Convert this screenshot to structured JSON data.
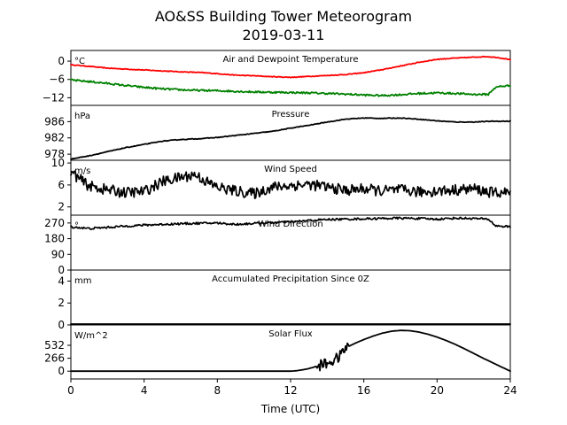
{
  "chart_data": {
    "type": "line",
    "title": "AO&SS Building Tower Meteorogram",
    "subtitle": "2019-03-11",
    "xlabel": "Time (UTC)",
    "xlim": [
      0,
      24
    ],
    "xticks": [
      0,
      4,
      8,
      12,
      16,
      20,
      24
    ],
    "xtick_labels": [
      "0",
      "4",
      "8",
      "12",
      "16",
      "20",
      "24"
    ],
    "grid": false,
    "panels": [
      {
        "key": "temp",
        "title": "Air and Dewpoint Temperature",
        "unit": "°C",
        "ylim": [
          -14.5,
          3.5
        ],
        "yticks": [
          0,
          -6,
          -12
        ],
        "ytick_labels": [
          "0",
          "−6",
          "−12"
        ],
        "series": [
          {
            "color": "#ff0000",
            "noise": 0.12,
            "points": [
              [
                0,
                -1.2
              ],
              [
                1,
                -1.7
              ],
              [
                2,
                -2.3
              ],
              [
                3,
                -2.6
              ],
              [
                4,
                -2.9
              ],
              [
                5,
                -3.2
              ],
              [
                6,
                -3.5
              ],
              [
                7,
                -3.7
              ],
              [
                8,
                -4.1
              ],
              [
                9,
                -4.6
              ],
              [
                10,
                -4.8
              ],
              [
                11,
                -5.1
              ],
              [
                12,
                -5.3
              ],
              [
                13,
                -5.0
              ],
              [
                14,
                -4.7
              ],
              [
                15,
                -4.4
              ],
              [
                16,
                -3.8
              ],
              [
                17,
                -2.8
              ],
              [
                18,
                -1.6
              ],
              [
                19,
                -0.4
              ],
              [
                20,
                0.6
              ],
              [
                21,
                1.0
              ],
              [
                22,
                1.3
              ],
              [
                22.7,
                1.5
              ],
              [
                23.3,
                1.2
              ],
              [
                24,
                0.5
              ]
            ]
          },
          {
            "color": "#008000",
            "noise": 0.3,
            "points": [
              [
                0,
                -6.2
              ],
              [
                1,
                -6.7
              ],
              [
                2,
                -7.3
              ],
              [
                3,
                -8.0
              ],
              [
                4,
                -8.6
              ],
              [
                5,
                -9.1
              ],
              [
                6,
                -9.4
              ],
              [
                7,
                -9.6
              ],
              [
                8,
                -9.7
              ],
              [
                9,
                -9.9
              ],
              [
                10,
                -10.1
              ],
              [
                11,
                -10.2
              ],
              [
                12,
                -10.3
              ],
              [
                13,
                -10.4
              ],
              [
                14,
                -10.6
              ],
              [
                15,
                -10.8
              ],
              [
                16,
                -11.1
              ],
              [
                17,
                -11.3
              ],
              [
                18,
                -11.0
              ],
              [
                19,
                -10.6
              ],
              [
                20,
                -10.4
              ],
              [
                21,
                -10.6
              ],
              [
                22,
                -10.9
              ],
              [
                22.8,
                -10.9
              ],
              [
                23.1,
                -9.0
              ],
              [
                23.4,
                -8.3
              ],
              [
                24,
                -8.0
              ]
            ]
          }
        ]
      },
      {
        "key": "pressure",
        "title": "Pressure",
        "unit": "hPa",
        "ylim": [
          976.5,
          990
        ],
        "yticks": [
          986,
          982,
          978
        ],
        "ytick_labels": [
          "986",
          "982",
          "978"
        ],
        "series": [
          {
            "color": "#000000",
            "noise": 0.08,
            "points": [
              [
                0,
                976.8
              ],
              [
                1,
                977.6
              ],
              [
                2,
                978.6
              ],
              [
                3,
                979.6
              ],
              [
                4,
                980.4
              ],
              [
                5,
                981.2
              ],
              [
                6,
                981.6
              ],
              [
                7,
                981.8
              ],
              [
                8,
                982.1
              ],
              [
                9,
                982.6
              ],
              [
                10,
                983.1
              ],
              [
                11,
                983.6
              ],
              [
                12,
                984.4
              ],
              [
                13,
                985.1
              ],
              [
                14,
                985.9
              ],
              [
                15,
                986.6
              ],
              [
                16,
                986.9
              ],
              [
                17,
                986.8
              ],
              [
                18,
                986.9
              ],
              [
                19,
                986.6
              ],
              [
                20,
                986.2
              ],
              [
                21,
                985.9
              ],
              [
                22,
                985.9
              ],
              [
                23,
                986.1
              ],
              [
                24,
                986.1
              ]
            ]
          }
        ]
      },
      {
        "key": "wind",
        "title": "Wind Speed",
        "unit": "m/s",
        "ylim": [
          0.5,
          10.5
        ],
        "yticks": [
          10,
          6,
          2
        ],
        "ytick_labels": [
          "10",
          "6",
          "2"
        ],
        "series": [
          {
            "color": "#000000",
            "noise": 1.0,
            "points": [
              [
                0,
                8.4
              ],
              [
                0.5,
                7.0
              ],
              [
                1,
                5.8
              ],
              [
                2,
                5.1
              ],
              [
                3,
                4.6
              ],
              [
                4,
                4.8
              ],
              [
                5,
                6.6
              ],
              [
                6,
                7.4
              ],
              [
                6.8,
                7.9
              ],
              [
                7.5,
                6.4
              ],
              [
                8,
                5.6
              ],
              [
                9,
                4.9
              ],
              [
                10,
                4.4
              ],
              [
                11,
                5.6
              ],
              [
                12,
                5.9
              ],
              [
                13,
                6.1
              ],
              [
                14,
                5.6
              ],
              [
                15,
                5.0
              ],
              [
                16,
                5.3
              ],
              [
                17,
                4.9
              ],
              [
                18,
                5.1
              ],
              [
                19,
                4.7
              ],
              [
                20,
                4.9
              ],
              [
                21,
                5.1
              ],
              [
                22,
                5.3
              ],
              [
                23,
                4.6
              ],
              [
                24,
                4.6
              ]
            ]
          }
        ]
      },
      {
        "key": "direction",
        "title": "Wind Direction",
        "unit": "°",
        "ylim": [
          0,
          315
        ],
        "yticks": [
          270,
          180,
          90,
          0
        ],
        "ytick_labels": [
          "270",
          "180",
          "90",
          "0"
        ],
        "series": [
          {
            "color": "#000000",
            "noise": 6,
            "points": [
              [
                0,
                248
              ],
              [
                1,
                238
              ],
              [
                2,
                245
              ],
              [
                3,
                252
              ],
              [
                4,
                258
              ],
              [
                5,
                262
              ],
              [
                6,
                266
              ],
              [
                7,
                268
              ],
              [
                8,
                270
              ],
              [
                9,
                262
              ],
              [
                10,
                268
              ],
              [
                11,
                272
              ],
              [
                12,
                276
              ],
              [
                13,
                284
              ],
              [
                14,
                290
              ],
              [
                15,
                292
              ],
              [
                16,
                294
              ],
              [
                17,
                296
              ],
              [
                18,
                298
              ],
              [
                19,
                296
              ],
              [
                20,
                292
              ],
              [
                21,
                298
              ],
              [
                22,
                296
              ],
              [
                22.8,
                292
              ],
              [
                23.2,
                254
              ],
              [
                24,
                248
              ]
            ]
          }
        ]
      },
      {
        "key": "precip",
        "title": "Accumulated Precipitation Since 0Z",
        "unit": "mm",
        "ylim": [
          0,
          5
        ],
        "yticks": [
          4,
          2,
          0
        ],
        "ytick_labels": [
          "4",
          "2",
          "0"
        ],
        "series": [
          {
            "color": "#000000",
            "noise": 0,
            "points": [
              [
                0,
                0
              ],
              [
                24,
                0
              ]
            ]
          }
        ]
      },
      {
        "key": "solar",
        "title": "Solar Flux",
        "unit": "W/m^2",
        "ylim": [
          -160,
          950
        ],
        "yticks": [
          532,
          266,
          0
        ],
        "ytick_labels": [
          "532",
          "266",
          "0"
        ],
        "series": [
          {
            "color": "#000000",
            "noise": 0,
            "points": [
              [
                0,
                0
              ],
              [
                12,
                0
              ],
              [
                12.3,
                8
              ],
              [
                12.6,
                25
              ],
              [
                12.9,
                45
              ],
              [
                13.2,
                75
              ],
              [
                13.5,
                110
              ],
              [
                13.8,
                140
              ],
              [
                14.1,
                175
              ],
              [
                14.4,
                230
              ],
              [
                14.7,
                310
              ],
              [
                15,
                480
              ],
              [
                15.5,
                570
              ],
              [
                16,
                650
              ],
              [
                16.5,
                720
              ],
              [
                17,
                780
              ],
              [
                17.5,
                820
              ],
              [
                18,
                838
              ],
              [
                18.5,
                832
              ],
              [
                19,
                805
              ],
              [
                19.5,
                760
              ],
              [
                20,
                700
              ],
              [
                20.5,
                630
              ],
              [
                21,
                550
              ],
              [
                21.5,
                460
              ],
              [
                22,
                365
              ],
              [
                22.5,
                270
              ],
              [
                23,
                180
              ],
              [
                23.5,
                90
              ],
              [
                24,
                0
              ]
            ]
          }
        ]
      }
    ]
  }
}
